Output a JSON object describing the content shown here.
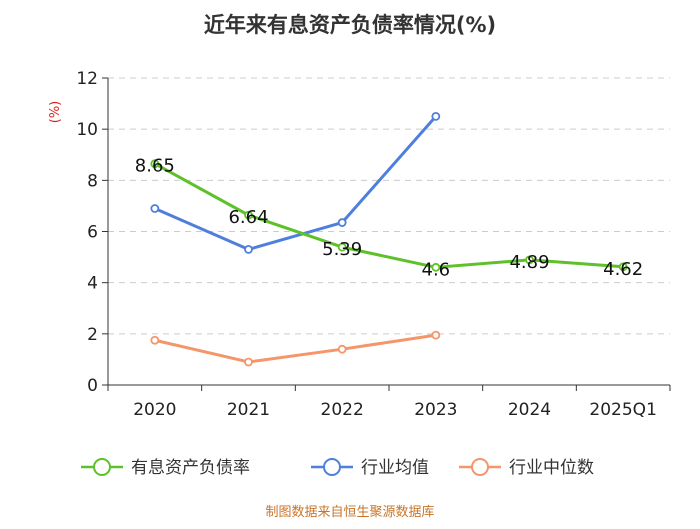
{
  "chart_data": {
    "type": "line",
    "title": "近年来有息资产负债率情况(%)",
    "ylabel": "(%)",
    "xlabel": "",
    "categories": [
      "2020",
      "2021",
      "2022",
      "2023",
      "2024",
      "2025Q1"
    ],
    "ylim": [
      0,
      12
    ],
    "yticks": [
      0,
      2,
      4,
      6,
      8,
      10,
      12
    ],
    "grid": true,
    "legend_position": "bottom",
    "series": [
      {
        "name": "有息资产负债率",
        "color": "#5ec12a",
        "values": [
          8.65,
          6.64,
          5.39,
          4.6,
          4.89,
          4.62
        ],
        "labels": [
          "8.65",
          "6.64",
          "5.39",
          "4.6",
          "4.89",
          "4.62"
        ],
        "show_labels": true
      },
      {
        "name": "行业均值",
        "color": "#4f7fdc",
        "values": [
          6.9,
          5.3,
          6.35,
          10.5,
          null,
          null
        ],
        "show_labels": false
      },
      {
        "name": "行业中位数",
        "color": "#f4956a",
        "values": [
          1.75,
          0.9,
          1.4,
          1.95,
          null,
          null
        ],
        "show_labels": false
      }
    ],
    "source": "制图数据来自恒生聚源数据库"
  }
}
